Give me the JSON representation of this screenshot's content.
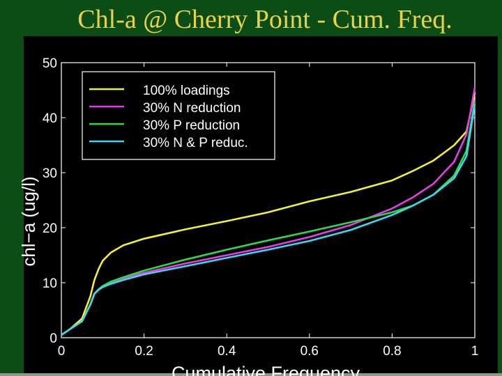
{
  "page": {
    "title": "Chl-a @ Cherry Point - Cum. Freq."
  },
  "chart_data": {
    "type": "line",
    "title": "",
    "xlabel": "Cumulative Frequency",
    "ylabel": "chl−a (ug/l)",
    "xlim": [
      0,
      1
    ],
    "ylim": [
      0,
      50
    ],
    "xticks": [
      0,
      0.2,
      0.4,
      0.6,
      0.8,
      1
    ],
    "xtick_labels": [
      "0",
      "0.2",
      "0.4",
      "0.6",
      "0.8",
      "1"
    ],
    "yticks": [
      0,
      10,
      20,
      30,
      40,
      50
    ],
    "ytick_labels": [
      "0",
      "10",
      "20",
      "30",
      "40",
      "50"
    ],
    "grid": false,
    "legend_position": "top-left",
    "colors": {
      "background": "#000000",
      "axes": "#ffffff",
      "slide": "#0b4d14",
      "title": "#e8d24a"
    },
    "series": [
      {
        "name": "100% loadings",
        "color": "#f2f03a",
        "x": [
          0,
          0.02,
          0.05,
          0.07,
          0.08,
          0.09,
          0.1,
          0.12,
          0.15,
          0.2,
          0.3,
          0.4,
          0.5,
          0.6,
          0.7,
          0.8,
          0.85,
          0.9,
          0.95,
          0.98,
          1.0
        ],
        "y": [
          0.5,
          1.5,
          3.5,
          7.5,
          10.5,
          12.5,
          14.0,
          15.5,
          16.8,
          18.0,
          19.7,
          21.2,
          22.8,
          24.8,
          26.5,
          28.6,
          30.3,
          32.2,
          35.0,
          37.5,
          44.5
        ]
      },
      {
        "name": "30% N reduction",
        "color": "#e53de8",
        "x": [
          0,
          0.02,
          0.05,
          0.07,
          0.08,
          0.09,
          0.1,
          0.12,
          0.15,
          0.2,
          0.3,
          0.4,
          0.5,
          0.6,
          0.7,
          0.8,
          0.85,
          0.9,
          0.95,
          0.98,
          1.0
        ],
        "y": [
          0.5,
          1.5,
          3.0,
          6.0,
          8.0,
          8.8,
          9.3,
          10.0,
          10.8,
          11.8,
          13.5,
          15.0,
          16.5,
          18.3,
          20.5,
          23.5,
          25.5,
          28.0,
          32.0,
          37.0,
          45.5
        ]
      },
      {
        "name": "30% P reduction",
        "color": "#2fd84a",
        "x": [
          0,
          0.02,
          0.05,
          0.07,
          0.08,
          0.09,
          0.1,
          0.12,
          0.15,
          0.2,
          0.3,
          0.4,
          0.5,
          0.6,
          0.7,
          0.8,
          0.85,
          0.9,
          0.95,
          0.98,
          1.0
        ],
        "y": [
          0.5,
          1.5,
          3.0,
          6.0,
          8.0,
          8.8,
          9.4,
          10.2,
          11.0,
          12.2,
          14.2,
          16.0,
          17.7,
          19.3,
          21.0,
          22.8,
          24.0,
          26.0,
          29.5,
          34.0,
          43.0
        ]
      },
      {
        "name": "30% N & P reduc.",
        "color": "#3cd8f0",
        "x": [
          0,
          0.02,
          0.05,
          0.07,
          0.08,
          0.09,
          0.1,
          0.12,
          0.15,
          0.2,
          0.3,
          0.4,
          0.5,
          0.6,
          0.7,
          0.8,
          0.85,
          0.9,
          0.95,
          0.98,
          1.0
        ],
        "y": [
          0.5,
          1.5,
          3.0,
          6.0,
          8.0,
          8.7,
          9.2,
          9.8,
          10.5,
          11.5,
          13.0,
          14.5,
          16.0,
          17.6,
          19.6,
          22.3,
          24.0,
          26.0,
          29.0,
          33.0,
          42.5
        ]
      }
    ]
  }
}
